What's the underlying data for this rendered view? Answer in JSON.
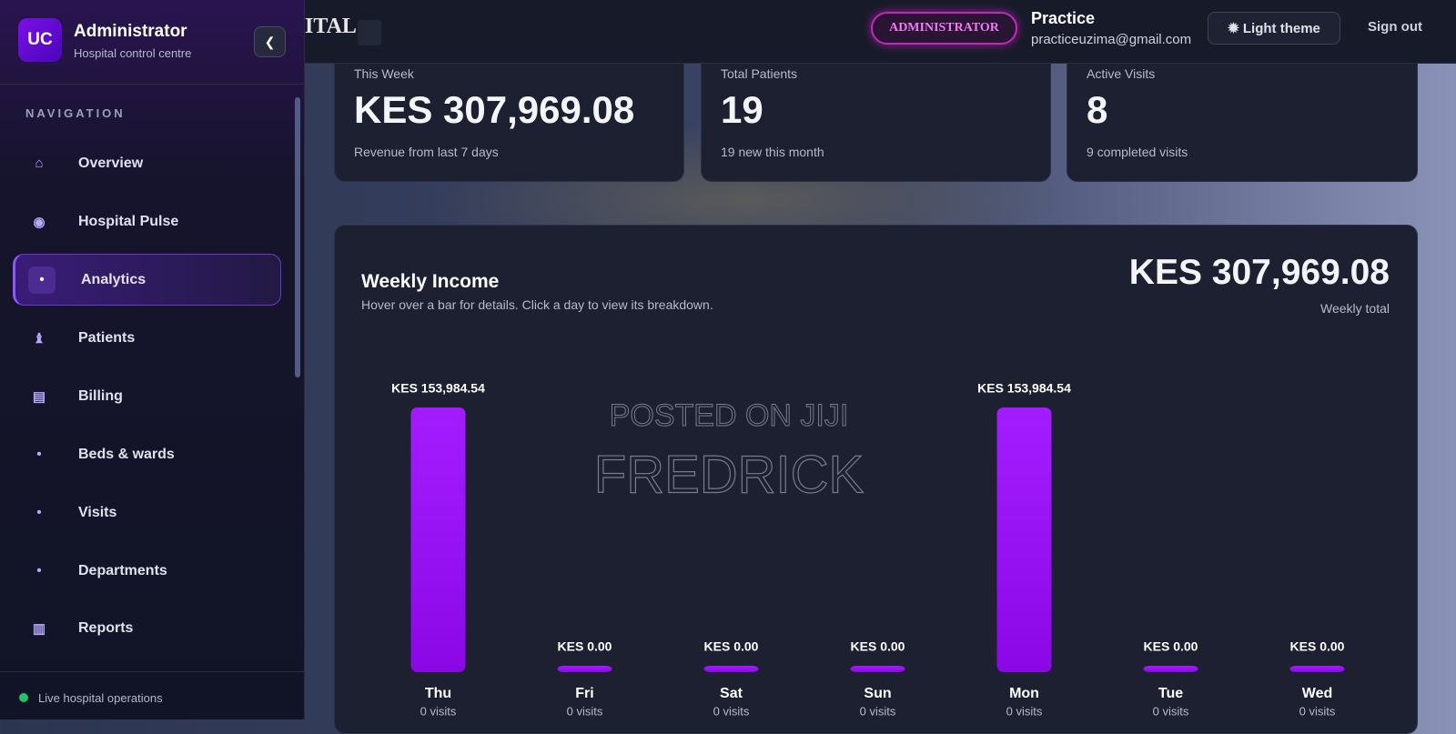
{
  "sidebar": {
    "logo": "UC",
    "title": "Administrator",
    "subtitle": "Hospital control centre",
    "nav_heading": "NAVIGATION",
    "nav": [
      "Overview",
      "Hospital Pulse",
      "Analytics",
      "Patients",
      "Billing",
      "Beds & wards",
      "Visits",
      "Departments",
      "Reports"
    ],
    "footer": "Live hospital operations"
  },
  "topbar": {
    "title_fragment": "ITAL",
    "role": "ADMINISTRATOR",
    "user_name": "Practice",
    "user_email": "practiceuzima@gmail.com",
    "theme_button": "Light theme",
    "sign_out": "Sign out"
  },
  "stats": [
    {
      "label": "This Week",
      "value": "KES 307,969.08",
      "note": "Revenue from last 7 days"
    },
    {
      "label": "Total Patients",
      "value": "19",
      "note": "19 new this month"
    },
    {
      "label": "Active Visits",
      "value": "8",
      "note": "9 completed visits"
    }
  ],
  "watermark": [
    "POSTED ON JIJI",
    "FREDRICK"
  ],
  "chart_data": {
    "type": "bar",
    "title": "Weekly Income",
    "subtitle": "Hover over a bar for details. Click a day to view its breakdown.",
    "total": "KES 307,969.08",
    "total_caption": "Weekly total",
    "categories": [
      "Thu",
      "Fri",
      "Sat",
      "Sun",
      "Mon",
      "Tue",
      "Wed"
    ],
    "values": [
      153984.54,
      0,
      0,
      0,
      153984.54,
      0,
      0
    ],
    "value_labels": [
      "KES 153,984.54",
      "KES 0.00",
      "KES 0.00",
      "KES 0.00",
      "KES 153,984.54",
      "KES 0.00",
      "KES 0.00"
    ],
    "visit_labels": [
      "0 visits",
      "0 visits",
      "0 visits",
      "0 visits",
      "0 visits",
      "0 visits",
      "0 visits"
    ],
    "color": "#9a08ff",
    "ylim": [
      0,
      153984.54
    ]
  }
}
